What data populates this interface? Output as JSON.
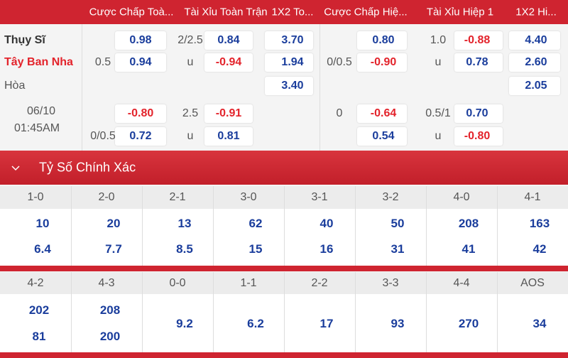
{
  "odds": {
    "headers": [
      "Cược Chấp Toà...",
      "Tài Xỉu Toàn Trận",
      "1X2 To...",
      "Cược Chấp Hiệ...",
      "Tài Xỉu Hiệp 1",
      "1X2 Hi..."
    ],
    "rows": [
      [
        "Thụy Sĩ",
        null,
        "0.98",
        "2/2.5",
        "0.84",
        "3.70",
        null,
        "0.80",
        "1.0",
        "-0.88",
        "4.40"
      ],
      [
        "Tây Ban Nha",
        "0.5",
        "0.94",
        "u",
        "-0.94",
        "1.94",
        "0/0.5",
        "-0.90",
        "u",
        "0.78",
        "2.60"
      ],
      [
        "Hòa",
        null,
        null,
        null,
        null,
        "3.40",
        null,
        null,
        null,
        null,
        "2.05"
      ],
      [
        "06/10",
        null,
        "-0.80",
        "2.5",
        "-0.91",
        null,
        "0",
        "-0.64",
        "0.5/1",
        "0.70",
        null
      ],
      [
        "01:45AM",
        "0/0.5",
        "0.72",
        "u",
        "0.81",
        null,
        null,
        "0.54",
        "u",
        "-0.80",
        null
      ]
    ]
  },
  "scores": {
    "title": "Tỷ Số Chính Xác",
    "groups": [
      {
        "labels": [
          "1-0",
          "2-0",
          "2-1",
          "3-0",
          "3-1",
          "3-2",
          "4-0",
          "4-1"
        ],
        "values": [
          [
            "10",
            "6.4"
          ],
          [
            "20",
            "7.7"
          ],
          [
            "13",
            "8.5"
          ],
          [
            "62",
            "15"
          ],
          [
            "40",
            "16"
          ],
          [
            "50",
            "31"
          ],
          [
            "208",
            "41"
          ],
          [
            "163",
            "42"
          ]
        ]
      },
      {
        "labels": [
          "4-2",
          "4-3",
          "0-0",
          "1-1",
          "2-2",
          "3-3",
          "4-4",
          "AOS"
        ],
        "values": [
          [
            "202",
            "81"
          ],
          [
            "208",
            "200"
          ],
          [
            "9.2"
          ],
          [
            "6.2"
          ],
          [
            "17"
          ],
          [
            "93"
          ],
          [
            "270"
          ],
          [
            "34"
          ]
        ]
      }
    ]
  }
}
